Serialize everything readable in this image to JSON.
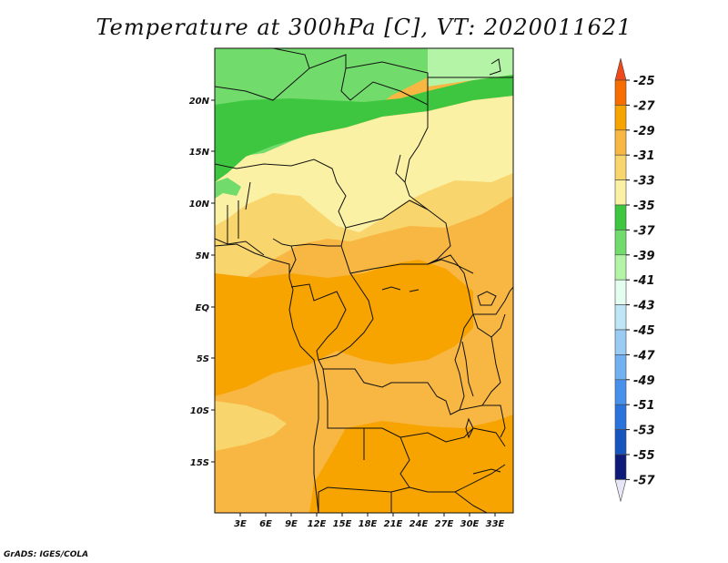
{
  "title": "Temperature at 300hPa [C], VT: 2020011621",
  "credit": "GrADS: IGES/COLA",
  "map": {
    "lat_labels": [
      "20N",
      "15N",
      "10N",
      "5N",
      "EQ",
      "5S",
      "10S",
      "15S"
    ],
    "lon_labels": [
      "3E",
      "6E",
      "9E",
      "12E",
      "15E",
      "18E",
      "21E",
      "24E",
      "27E",
      "30E",
      "33E"
    ]
  },
  "colorbar": {
    "labels": [
      "-25",
      "-27",
      "-29",
      "-31",
      "-33",
      "-35",
      "-37",
      "-39",
      "-41",
      "-43",
      "-45",
      "-47",
      "-49",
      "-51",
      "-53",
      "-55",
      "-57"
    ],
    "colors": [
      "#f04a1a",
      "#f76d00",
      "#f7a300",
      "#f7b742",
      "#f8d56d",
      "#fbf1a4",
      "#3fc641",
      "#71dc6b",
      "#b4f4a7",
      "#e3fdf0",
      "#bfe6f6",
      "#9acbf3",
      "#71b1f2",
      "#4791ed",
      "#2b73dc",
      "#1655bd",
      "#0e1a78"
    ],
    "top_arrow_color": "#f04a1a",
    "bottom_arrow_color": "#e6e6f7"
  },
  "field_colors": {
    "green_light": "#71dc6b",
    "green_dark": "#3fc641",
    "green_pale": "#b4f4a7",
    "yellow_pale": "#fbf1a4",
    "yellow": "#f8d56d",
    "orange_light": "#f7b742",
    "orange": "#f7a300"
  }
}
